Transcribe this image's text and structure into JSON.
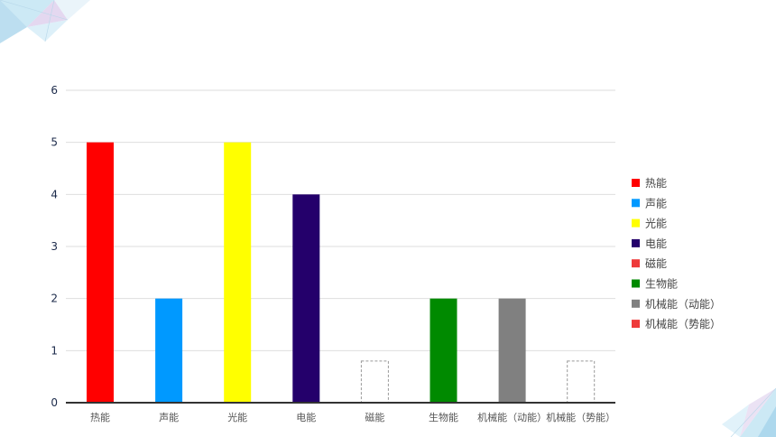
{
  "chart_data": {
    "type": "bar",
    "title": "",
    "xlabel": "",
    "ylabel": "",
    "ylim": [
      0,
      6
    ],
    "yticks": [
      0,
      1,
      2,
      3,
      4,
      5,
      6
    ],
    "grid": true,
    "legend_position": "right",
    "categories": [
      "热能",
      "声能",
      "光能",
      "电能",
      "磁能",
      "生物能",
      "机械能（动能）",
      "机械能（势能）"
    ],
    "values": [
      5,
      2,
      5,
      4,
      0,
      2,
      2,
      0
    ],
    "colors": [
      "#ff0000",
      "#0099ff",
      "#ffff00",
      "#24006b",
      "#ee3a3a",
      "#008a00",
      "#808080",
      "#ee3a3a"
    ],
    "placeholder_bars": [
      4,
      7
    ],
    "placeholder_value": 0.8
  }
}
